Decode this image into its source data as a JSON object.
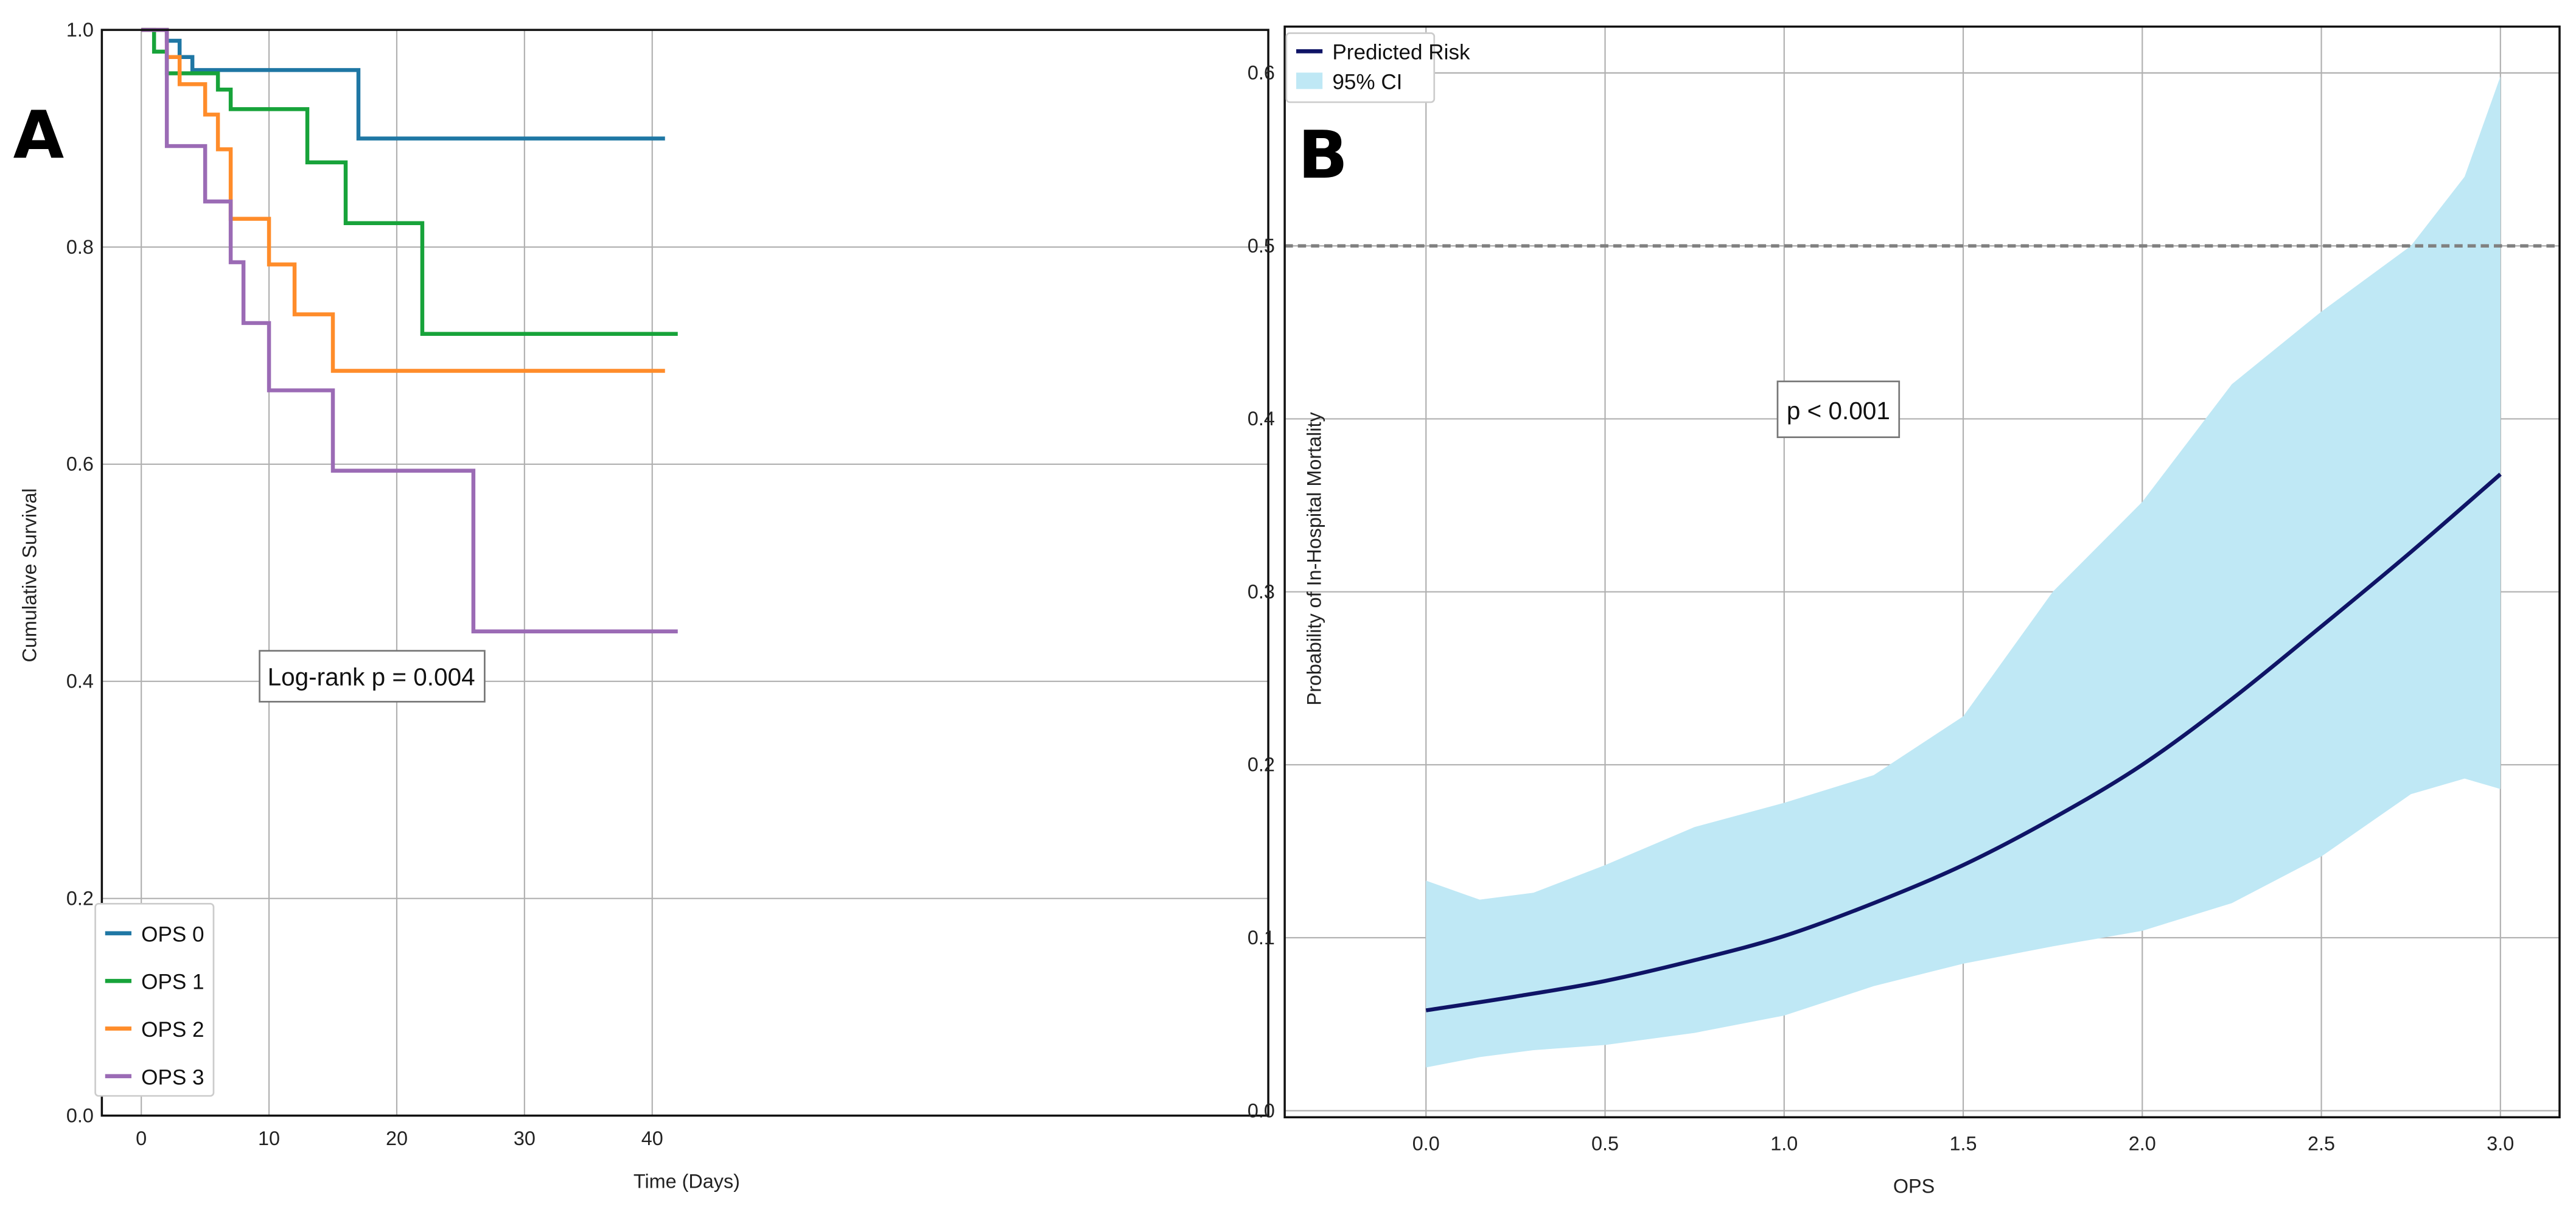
{
  "chart_data": [
    {
      "panel_label": "A",
      "type": "line",
      "step": true,
      "xlabel": "Time (Days)",
      "ylabel": "Cumulative Survival",
      "xlim": [
        -2,
        44
      ],
      "ylim": [
        0.0,
        1.0
      ],
      "xticks": [
        0,
        10,
        20,
        30,
        40
      ],
      "yticks": [
        0.0,
        0.2,
        0.4,
        0.6,
        0.8,
        1.0
      ],
      "grid": true,
      "legend_position": "lower-left",
      "annotation": "Log-rank p = 0.004",
      "series": [
        {
          "name": "OPS 0",
          "color": "#1f77a4",
          "x": [
            0,
            2,
            3,
            4,
            17,
            41
          ],
          "y": [
            1.0,
            0.99,
            0.975,
            0.963,
            0.9,
            0.9
          ]
        },
        {
          "name": "OPS 1",
          "color": "#17a33a",
          "x": [
            0,
            1,
            2,
            6,
            7,
            13,
            16,
            22,
            42
          ],
          "y": [
            1.0,
            0.98,
            0.96,
            0.945,
            0.927,
            0.878,
            0.822,
            0.72,
            0.72
          ]
        },
        {
          "name": "OPS 2",
          "color": "#ff8c2a",
          "x": [
            0,
            2,
            3,
            5,
            6,
            7,
            10,
            12,
            15,
            41
          ],
          "y": [
            1.0,
            0.975,
            0.95,
            0.922,
            0.89,
            0.826,
            0.784,
            0.738,
            0.686,
            0.686
          ]
        },
        {
          "name": "OPS 3",
          "color": "#9b6bb5",
          "x": [
            0,
            2,
            5,
            7,
            8,
            10,
            15,
            26,
            42
          ],
          "y": [
            1.0,
            0.893,
            0.842,
            0.786,
            0.73,
            0.668,
            0.594,
            0.446,
            0.446
          ]
        }
      ]
    },
    {
      "panel_label": "B",
      "type": "line",
      "xlabel": "OPS",
      "ylabel": "Probability of In-Hospital Mortality",
      "xlim": [
        -0.15,
        3.15
      ],
      "ylim": [
        -0.005,
        0.625
      ],
      "xticks": [
        0.0,
        0.5,
        1.0,
        1.5,
        2.0,
        2.5,
        3.0
      ],
      "yticks": [
        0.0,
        0.1,
        0.2,
        0.3,
        0.4,
        0.5,
        0.6
      ],
      "grid": true,
      "legend_position": "top-left",
      "annotation": "p < 0.001",
      "reference_line": {
        "y": 0.5,
        "style": "dashed",
        "color": "#808080"
      },
      "series": [
        {
          "name": "Predicted Risk",
          "color": "#0f1466",
          "x": [
            0,
            0.25,
            0.5,
            0.75,
            1.0,
            1.25,
            1.5,
            1.75,
            2.0,
            2.25,
            2.5,
            2.75,
            3.0
          ],
          "y": [
            0.058,
            0.066,
            0.075,
            0.087,
            0.101,
            0.12,
            0.142,
            0.169,
            0.2,
            0.238,
            0.28,
            0.323,
            0.368
          ]
        },
        {
          "name": "95% CI",
          "color": "#bfe8f5",
          "type": "band",
          "x": [
            0,
            0.15,
            0.3,
            0.5,
            0.75,
            1.0,
            1.25,
            1.5,
            1.75,
            2.0,
            2.25,
            2.5,
            2.75,
            2.9,
            3.0
          ],
          "lower": [
            0.025,
            0.031,
            0.035,
            0.038,
            0.045,
            0.055,
            0.072,
            0.085,
            0.095,
            0.104,
            0.12,
            0.147,
            0.183,
            0.192,
            0.186
          ],
          "upper": [
            0.133,
            0.122,
            0.126,
            0.142,
            0.164,
            0.178,
            0.194,
            0.228,
            0.3,
            0.352,
            0.42,
            0.462,
            0.5,
            0.54,
            0.598
          ]
        }
      ]
    }
  ]
}
